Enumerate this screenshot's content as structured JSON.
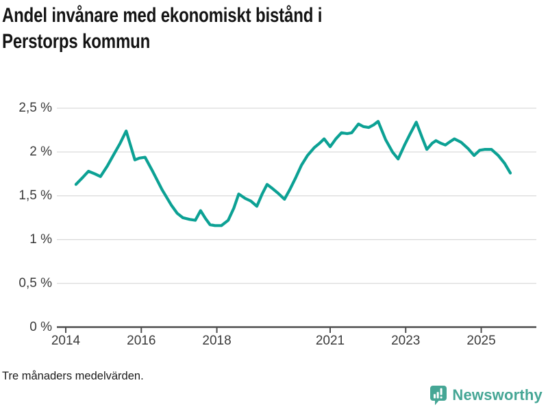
{
  "header": {
    "title": "Andel invånare med ekonomiskt bistånd i Perstorps kommun"
  },
  "footer": {
    "note": "Tre månaders medelvärden.",
    "brand": "Newsworthy"
  },
  "branding": {
    "color": "#45A695",
    "icon": "bar-chart-speech-bubble"
  },
  "chart_data": {
    "type": "line",
    "title": "Andel invånare med ekonomiskt bistånd i Perstorps kommun",
    "xlabel": "",
    "ylabel": "",
    "unit": "%",
    "grid": "horizontal",
    "legend": "none",
    "ylim": [
      0,
      2.6
    ],
    "xlim": [
      2013.77,
      2026.45
    ],
    "line_color": "#0CA194",
    "grid_color": "#DBDBDB",
    "axis_color": "#4D4D4D",
    "label_color": "#3A3A3A",
    "y_ticks": [
      {
        "value": 0,
        "label": "0 %"
      },
      {
        "value": 0.5,
        "label": "0,5 %"
      },
      {
        "value": 1,
        "label": "1 %"
      },
      {
        "value": 1.5,
        "label": "1,5 %"
      },
      {
        "value": 2,
        "label": "2 %"
      },
      {
        "value": 2.5,
        "label": "2,5 %"
      }
    ],
    "x_ticks": [
      {
        "value": 2014,
        "label": "2014"
      },
      {
        "value": 2016,
        "label": "2016"
      },
      {
        "value": 2018,
        "label": "2018"
      },
      {
        "value": 2021,
        "label": "2021"
      },
      {
        "value": 2023,
        "label": "2023"
      },
      {
        "value": 2025,
        "label": "2025"
      }
    ],
    "series": [
      {
        "name": "Andel invånare med ekonomiskt bistånd (%)",
        "points": [
          [
            2014.27,
            1.63
          ],
          [
            2014.45,
            1.71
          ],
          [
            2014.6,
            1.78
          ],
          [
            2014.77,
            1.75
          ],
          [
            2014.92,
            1.72
          ],
          [
            2015.1,
            1.84
          ],
          [
            2015.27,
            1.97
          ],
          [
            2015.44,
            2.1
          ],
          [
            2015.6,
            2.24
          ],
          [
            2015.83,
            1.91
          ],
          [
            2015.95,
            1.93
          ],
          [
            2016.1,
            1.94
          ],
          [
            2016.3,
            1.78
          ],
          [
            2016.55,
            1.57
          ],
          [
            2016.8,
            1.39
          ],
          [
            2016.95,
            1.3
          ],
          [
            2017.1,
            1.25
          ],
          [
            2017.28,
            1.23
          ],
          [
            2017.43,
            1.22
          ],
          [
            2017.57,
            1.33
          ],
          [
            2017.7,
            1.24
          ],
          [
            2017.82,
            1.17
          ],
          [
            2017.95,
            1.16
          ],
          [
            2018.12,
            1.16
          ],
          [
            2018.3,
            1.22
          ],
          [
            2018.45,
            1.36
          ],
          [
            2018.58,
            1.52
          ],
          [
            2018.75,
            1.47
          ],
          [
            2018.9,
            1.44
          ],
          [
            2019.06,
            1.38
          ],
          [
            2019.2,
            1.52
          ],
          [
            2019.33,
            1.63
          ],
          [
            2019.48,
            1.58
          ],
          [
            2019.62,
            1.53
          ],
          [
            2019.79,
            1.46
          ],
          [
            2019.93,
            1.57
          ],
          [
            2020.08,
            1.7
          ],
          [
            2020.24,
            1.85
          ],
          [
            2020.4,
            1.96
          ],
          [
            2020.58,
            2.05
          ],
          [
            2020.72,
            2.1
          ],
          [
            2020.84,
            2.15
          ],
          [
            2021.0,
            2.06
          ],
          [
            2021.15,
            2.15
          ],
          [
            2021.3,
            2.22
          ],
          [
            2021.45,
            2.21
          ],
          [
            2021.57,
            2.22
          ],
          [
            2021.75,
            2.32
          ],
          [
            2021.88,
            2.29
          ],
          [
            2022.02,
            2.28
          ],
          [
            2022.15,
            2.31
          ],
          [
            2022.27,
            2.35
          ],
          [
            2022.47,
            2.14
          ],
          [
            2022.65,
            2.0
          ],
          [
            2022.8,
            1.92
          ],
          [
            2022.97,
            2.08
          ],
          [
            2023.11,
            2.2
          ],
          [
            2023.28,
            2.34
          ],
          [
            2023.44,
            2.16
          ],
          [
            2023.56,
            2.03
          ],
          [
            2023.7,
            2.1
          ],
          [
            2023.8,
            2.13
          ],
          [
            2023.93,
            2.1
          ],
          [
            2024.05,
            2.08
          ],
          [
            2024.18,
            2.12
          ],
          [
            2024.29,
            2.15
          ],
          [
            2024.47,
            2.11
          ],
          [
            2024.65,
            2.04
          ],
          [
            2024.81,
            1.96
          ],
          [
            2024.96,
            2.02
          ],
          [
            2025.1,
            2.03
          ],
          [
            2025.27,
            2.03
          ],
          [
            2025.45,
            1.96
          ],
          [
            2025.62,
            1.87
          ],
          [
            2025.77,
            1.76
          ]
        ]
      }
    ]
  }
}
